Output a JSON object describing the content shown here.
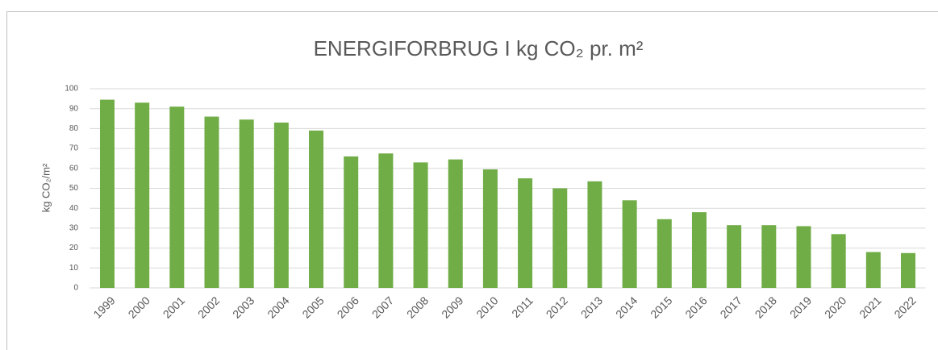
{
  "chart_data": {
    "type": "bar",
    "title": "ENERGIFORBRUG  I kg CO₂ pr. m²",
    "y_label": "kg CO₂/m²",
    "categories": [
      "1999",
      "2000",
      "2001",
      "2002",
      "2003",
      "2004",
      "2005",
      "2006",
      "2007",
      "2008",
      "2009",
      "2010",
      "2011",
      "2012",
      "2013",
      "2014",
      "2015",
      "2016",
      "2017",
      "2018",
      "2019",
      "2020",
      "2021",
      "2022"
    ],
    "values": [
      94.5,
      93,
      91,
      86,
      84.5,
      83,
      79,
      66,
      67.5,
      63,
      64.5,
      59.5,
      55,
      50,
      53.5,
      44,
      34.5,
      38,
      31.5,
      31.5,
      31,
      27,
      18,
      17.5
    ],
    "color": "#70ad47",
    "ylim": [
      0,
      100
    ],
    "yticks": [
      0,
      10,
      20,
      30,
      40,
      50,
      60,
      70,
      80,
      90,
      100
    ],
    "grid": true
  }
}
